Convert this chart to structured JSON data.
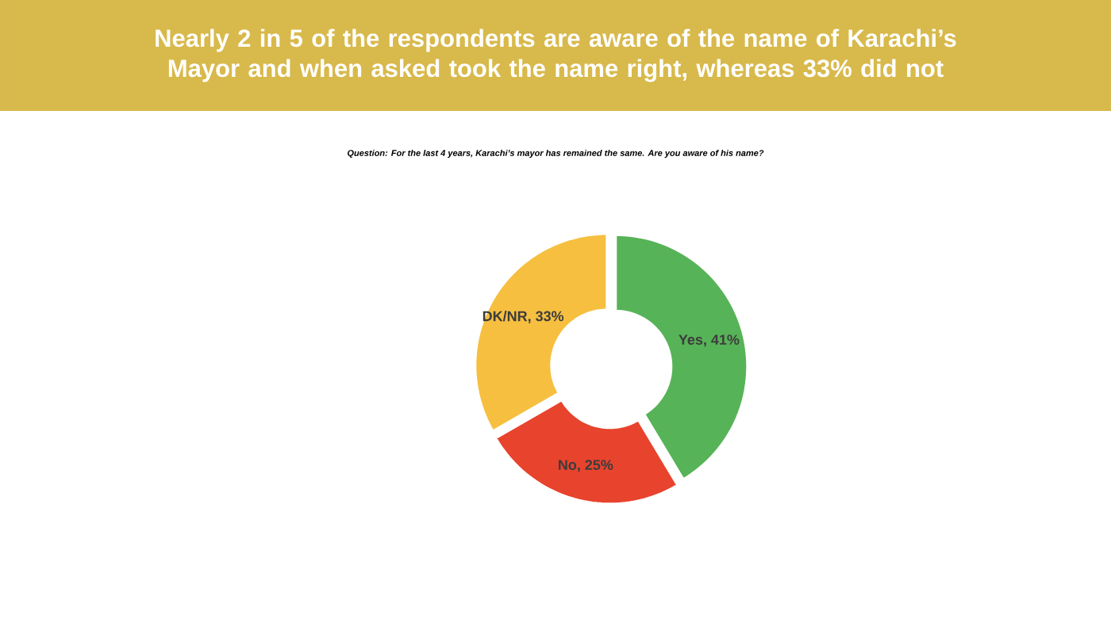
{
  "chart_data": {
    "type": "donut",
    "title": "Nearly 2 in 5 of the respondents are aware of the name of Karachi’s Mayor and when asked took the  name right, whereas 33% did not",
    "subtitle": "Question: For the last 4 years, Karachi’s mayor has remained the same. Are you aware of his name?",
    "categories": [
      "Yes",
      "No",
      "DK/NR"
    ],
    "values": [
      41,
      25,
      33
    ],
    "value_labels": [
      ", 41%",
      ", 25%",
      ", 33%"
    ],
    "colors": [
      "#57b357",
      "#e8432d",
      "#f6bf40"
    ]
  }
}
